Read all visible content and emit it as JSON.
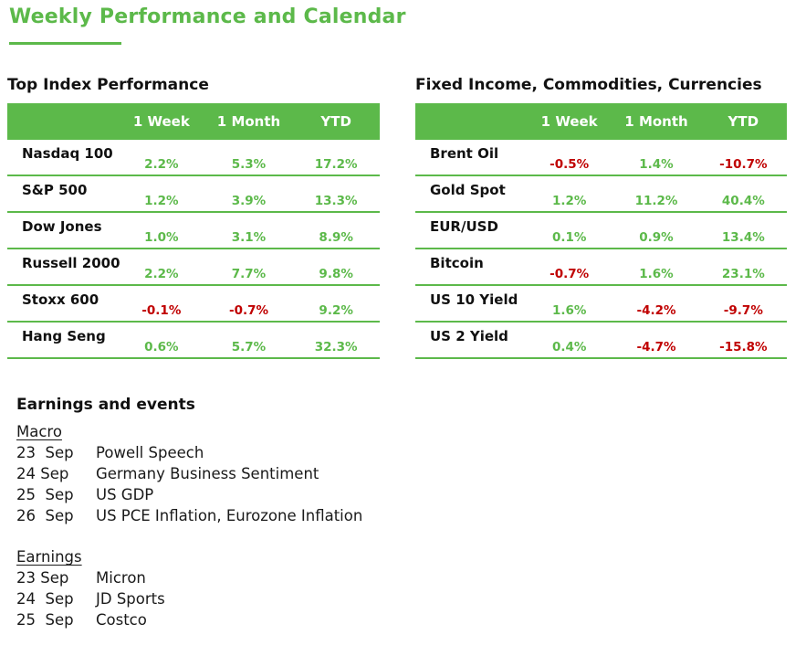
{
  "page": {
    "title": "Weekly Performance and Calendar"
  },
  "colors": {
    "green": "#5cb94a",
    "green_text": "#5cb94a",
    "red": "#c00000",
    "header_text": "#ffffff"
  },
  "index_table": {
    "title": "Top Index Performance",
    "headers": [
      "1 Week",
      "1 Month",
      "YTD"
    ],
    "rows": [
      {
        "name": "Nasdaq 100",
        "values": [
          "2.2%",
          "5.3%",
          "17.2%"
        ]
      },
      {
        "name": "S&P 500",
        "values": [
          "1.2%",
          "3.9%",
          "13.3%"
        ]
      },
      {
        "name": "Dow Jones",
        "values": [
          "1.0%",
          "3.1%",
          "8.9%"
        ]
      },
      {
        "name": "Russell 2000",
        "values": [
          "2.2%",
          "7.7%",
          "9.8%"
        ]
      },
      {
        "name": "Stoxx 600",
        "values": [
          "-0.1%",
          "-0.7%",
          "9.2%"
        ]
      },
      {
        "name": "Hang Seng",
        "values": [
          "0.6%",
          "5.7%",
          "32.3%"
        ]
      }
    ]
  },
  "ficc_table": {
    "title": "Fixed Income, Commodities, Currencies",
    "headers": [
      "1 Week",
      "1 Month",
      "YTD"
    ],
    "rows": [
      {
        "name": "Brent Oil",
        "values": [
          "-0.5%",
          "1.4%",
          "-10.7%"
        ]
      },
      {
        "name": "Gold Spot",
        "values": [
          "1.2%",
          "11.2%",
          "40.4%"
        ]
      },
      {
        "name": "EUR/USD",
        "values": [
          "0.1%",
          "0.9%",
          "13.4%"
        ]
      },
      {
        "name": "Bitcoin",
        "values": [
          "-0.7%",
          "1.6%",
          "23.1%"
        ]
      },
      {
        "name": "US 10 Yield",
        "values": [
          "1.6%",
          "-4.2%",
          "-9.7%"
        ]
      },
      {
        "name": "US 2 Yield",
        "values": [
          "0.4%",
          "-4.7%",
          "-15.8%"
        ]
      }
    ]
  },
  "events": {
    "title": "Earnings and events",
    "macro": {
      "title": "Macro",
      "items": [
        {
          "date": "23  Sep",
          "label": "Powell Speech"
        },
        {
          "date": "24 Sep",
          "label": "Germany Business Sentiment"
        },
        {
          "date": "25  Sep",
          "label": "US GDP"
        },
        {
          "date": "26  Sep",
          "label": "US PCE Inflation, Eurozone Inflation"
        }
      ]
    },
    "earnings": {
      "title": "Earnings",
      "items": [
        {
          "date": "23 Sep",
          "label": "Micron"
        },
        {
          "date": "24  Sep",
          "label": "JD Sports"
        },
        {
          "date": "25  Sep",
          "label": "Costco"
        }
      ]
    }
  }
}
